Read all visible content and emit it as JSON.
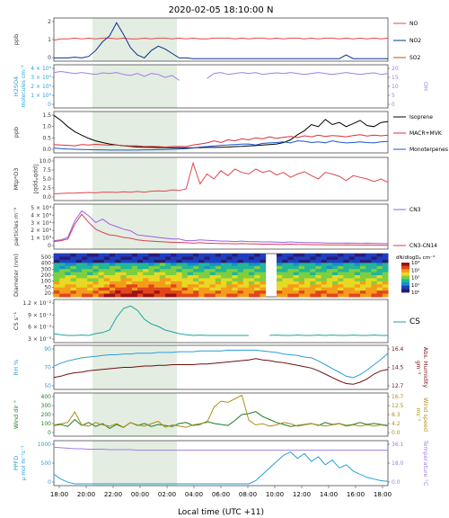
{
  "title": "2020-02-05 18:10:00  N",
  "xlabel": "Local time (UTC +11)",
  "x_ticks": [
    "18:00",
    "20:00",
    "22:00",
    "00:00",
    "02:00",
    "04:00",
    "06:00",
    "08:00",
    "10:00",
    "12:00",
    "14:00",
    "16:00",
    "18:00"
  ],
  "colors": {
    "NO": "#e8474a",
    "NO2": "#0a2f8c",
    "SO2": "#b5561f",
    "H2SO4": "#2a9fd6",
    "OH": "#a07ee3",
    "Isoprene": "#000000",
    "MACR_MVK": "#d9303a",
    "Monoterpenes": "#1a56c9",
    "O3": "#e0484f",
    "CN3": "#9b5fe0",
    "CN3_CN14": "#d93f57",
    "CS": "#1aa5a0",
    "RH": "#2a9fd6",
    "AbsHum": "#6e0f12",
    "WindDir": "#1d7a2c",
    "WindSpeed": "#b08f12",
    "PPFD": "#2a9fd6",
    "Temp": "#a07ee3",
    "shade": "#e3ede2"
  },
  "chart_data": [
    {
      "type": "line",
      "panel": "no_no2_so2",
      "ylabel": "ppb",
      "yticks": [
        "0",
        "1",
        "2"
      ],
      "ylim": [
        0,
        2.7
      ],
      "series": [
        {
          "name": "NO",
          "values": [
            1.3,
            1.4,
            1.4,
            1.45,
            1.4,
            1.45,
            1.4,
            1.45,
            1.45,
            1.4,
            1.45,
            1.4,
            1.4,
            1.45,
            1.4,
            1.45,
            1.45,
            1.4,
            1.45,
            1.4,
            1.45,
            1.4,
            1.4,
            1.45,
            1.45,
            1.45,
            1.4,
            1.45,
            1.4,
            1.45,
            1.45,
            1.4,
            1.45,
            1.4,
            1.45,
            1.45,
            1.4,
            1.45,
            1.4,
            1.45,
            1.45,
            1.4,
            1.45,
            1.4,
            1.45,
            1.4,
            1.45,
            1.4,
            1.45
          ]
        },
        {
          "name": "NO2",
          "values": [
            0.1,
            0.1,
            0.1,
            0.15,
            0.1,
            0.2,
            0.6,
            1.2,
            1.6,
            2.5,
            1.7,
            0.8,
            0.3,
            0.1,
            0.6,
            0.9,
            0.7,
            0.4,
            0.1,
            0.1,
            0.05,
            0.05,
            0.05,
            0.05,
            0.05,
            0.05,
            0.05,
            0.05,
            0.05,
            0.05,
            0.05,
            0.05,
            0.05,
            0.05,
            0.05,
            0.05,
            0.05,
            0.05,
            0.05,
            0.05,
            0.05,
            0.05,
            0.3,
            0.05,
            0.05,
            0.05,
            0.05,
            0.05,
            0.05
          ]
        },
        {
          "name": "SO2",
          "values": []
        }
      ]
    },
    {
      "type": "line",
      "panel": "h2so4_oh",
      "ylabel": "H2SO4",
      "y2label": "OH",
      "units": "molecules cm⁻³",
      "yticks": [
        "0",
        "1 × 10⁶",
        "2 × 10⁶",
        "3 × 10⁶",
        "4 × 10⁶"
      ],
      "y2ticks": [
        "0",
        "5",
        "10",
        "15",
        "20"
      ],
      "ylim": [
        0,
        4000000
      ],
      "y2lim": [
        0,
        20
      ],
      "series": [
        {
          "name": "OH",
          "axis": "right",
          "values": [
            17,
            17.5,
            17,
            16.5,
            17,
            16.5,
            16,
            16.8,
            16.5,
            17,
            16,
            15.5,
            16.5,
            15,
            16.5,
            16,
            14.5,
            15.5,
            13,
            null,
            null,
            null,
            14,
            16.5,
            17,
            16,
            16.5,
            17,
            16.5,
            17,
            16,
            16.5,
            16.8,
            16.5,
            17,
            16.5,
            16,
            16.5,
            17,
            16.5,
            16,
            16.5,
            17,
            16.5,
            16,
            16.5,
            16.8,
            16,
            16.5
          ]
        }
      ]
    },
    {
      "type": "line",
      "panel": "vocs",
      "ylabel": "ppb",
      "yticks": [
        "0.0",
        "0.5",
        "1.0",
        "1.5"
      ],
      "ylim": [
        0,
        1.85
      ],
      "series": [
        {
          "name": "Isoprene",
          "values": [
            1.75,
            1.5,
            1.2,
            0.95,
            0.78,
            0.62,
            0.5,
            0.42,
            0.35,
            0.3,
            0.26,
            0.23,
            0.2,
            0.19,
            0.18,
            0.17,
            0.17,
            0.16,
            0.16,
            0.16,
            0.16,
            0.17,
            0.18,
            0.18,
            0.19,
            0.2,
            0.22,
            0.23,
            0.25,
            0.27,
            0.3,
            0.32,
            0.35,
            0.42,
            0.55,
            0.8,
            1.0,
            1.3,
            1.2,
            1.55,
            1.3,
            1.4,
            1.2,
            1.35,
            1.5,
            1.25,
            1.2,
            1.4,
            1.45
          ]
        },
        {
          "name": "MACR+MVK",
          "values": [
            0.32,
            0.3,
            0.28,
            0.26,
            0.32,
            0.3,
            0.33,
            0.31,
            0.29,
            0.3,
            0.27,
            0.25,
            0.26,
            0.22,
            0.23,
            0.22,
            0.2,
            0.22,
            0.23,
            0.22,
            0.3,
            0.35,
            0.4,
            0.5,
            0.42,
            0.55,
            0.5,
            0.6,
            0.55,
            0.65,
            0.6,
            0.7,
            0.62,
            0.68,
            0.72,
            0.66,
            0.75,
            0.7,
            0.78,
            0.72,
            0.76,
            0.74,
            0.7,
            0.76,
            0.8,
            0.74,
            0.78,
            0.75,
            0.78
          ]
        },
        {
          "name": "Monoterpenes",
          "values": [
            0.15,
            0.12,
            0.1,
            0.09,
            0.08,
            0.07,
            0.06,
            0.06,
            0.05,
            0.05,
            0.05,
            0.05,
            0.05,
            0.06,
            0.06,
            0.07,
            0.08,
            0.09,
            0.1,
            0.12,
            0.15,
            0.2,
            0.22,
            0.25,
            0.28,
            0.3,
            0.32,
            0.34,
            0.35,
            0.3,
            0.38,
            0.4,
            0.42,
            0.45,
            0.4,
            0.5,
            0.48,
            0.42,
            0.45,
            0.4,
            0.5,
            0.44,
            0.4,
            0.42,
            0.45,
            0.42,
            0.4,
            0.45,
            0.47
          ]
        }
      ]
    },
    {
      "type": "line",
      "panel": "o3",
      "ylabel": "Mtp*O3",
      "y2label": "[ppb*ppb]",
      "yticks": [
        "0.0",
        "2.5",
        "5.0",
        "7.5",
        "10.0"
      ],
      "ylim": [
        0,
        12
      ],
      "series": [
        {
          "name": "Mtp*O3",
          "values": [
            1.5,
            1.6,
            1.7,
            1.7,
            1.8,
            1.9,
            1.8,
            2.0,
            2.0,
            1.9,
            2.1,
            2.0,
            2.2,
            2.0,
            2.3,
            2.4,
            2.3,
            2.7,
            2.5,
            3.0,
            10.8,
            4.5,
            7.5,
            6.0,
            8.5,
            7.0,
            9.0,
            8.0,
            7.5,
            9.0,
            8.0,
            8.5,
            7.2,
            8.0,
            6.5,
            7.5,
            8.2,
            7.0,
            6.0,
            8.0,
            7.5,
            6.8,
            5.5,
            7.0,
            6.5,
            6.0,
            5.2,
            6.0,
            5.0
          ]
        }
      ]
    },
    {
      "type": "line",
      "panel": "cn",
      "ylabel": "particles m⁻³",
      "yticks": [
        "0",
        "1 × 10⁴",
        "2 × 10⁴",
        "3 × 10⁴",
        "4 × 10⁴",
        "5 × 10⁴"
      ],
      "ylim": [
        0,
        50000
      ],
      "series": [
        {
          "name": "CN3",
          "values": [
            8000,
            9000,
            12000,
            32000,
            44000,
            38000,
            30000,
            34000,
            28000,
            25000,
            22000,
            20000,
            15000,
            14000,
            13000,
            12000,
            11000,
            10000,
            10000,
            8000,
            8000,
            9000,
            8500,
            8000,
            7500,
            7500,
            7000,
            7500,
            7000,
            6800,
            6500,
            6500,
            6200,
            6000,
            6500,
            6000,
            5800,
            5500,
            5500,
            5200,
            5000,
            5000,
            5200,
            5000,
            4800,
            5000,
            4800,
            4500,
            4500
          ]
        },
        {
          "name": "CN3-CN14",
          "values": [
            7000,
            8000,
            10000,
            28000,
            40000,
            30000,
            22000,
            18000,
            15000,
            14000,
            12000,
            11000,
            9000,
            8000,
            7500,
            7000,
            6500,
            6000,
            6000,
            5500,
            5000,
            5500,
            5000,
            4800,
            4500,
            4500,
            4200,
            4500,
            4200,
            4000,
            3800,
            3800,
            3600,
            3500,
            3800,
            3500,
            3400,
            3200,
            3200,
            3000,
            2800,
            2800,
            3000,
            2800,
            2600,
            2800,
            2600,
            2500,
            2500
          ]
        }
      ]
    },
    {
      "type": "heatmap",
      "panel": "size_distribution",
      "ylabel": "Diameter (nm)",
      "yticks": [
        "20",
        "50",
        "100",
        "200",
        "300",
        "400",
        "500"
      ],
      "legend_title": "dN/dlogDₚ cm⁻³",
      "colorbar_ticks": [
        "10⁴",
        "10³",
        "10²",
        "10¹",
        "10⁰"
      ]
    },
    {
      "type": "line",
      "panel": "cs",
      "ylabel": "CS s⁻¹",
      "yticks": [
        "3 × 10⁻³",
        "6 × 10⁻³",
        "9 × 10⁻³",
        "1.2 × 10⁻²"
      ],
      "ylim": [
        0.0015,
        0.0125
      ],
      "series": [
        {
          "name": "CS",
          "values": [
            0.0035,
            0.0032,
            0.003,
            0.003,
            0.0031,
            0.003,
            0.0035,
            0.0038,
            0.0045,
            0.008,
            0.0105,
            0.0112,
            0.01,
            0.0075,
            0.0062,
            0.0055,
            0.0045,
            0.004,
            0.0035,
            0.0032,
            0.003,
            0.0031,
            0.003,
            0.003,
            0.003,
            0.003,
            0.003,
            0.003,
            0.003,
            null,
            null,
            0.003,
            0.0031,
            0.003,
            0.003,
            0.0031,
            0.003,
            0.003,
            0.0031,
            0.003,
            0.0031,
            0.003,
            0.003,
            0.0031,
            0.003,
            0.003,
            0.0031,
            0.003,
            0.003
          ]
        }
      ]
    },
    {
      "type": "line",
      "panel": "humidity",
      "ylabel": "RH %",
      "y2label": "Abs. Humidity",
      "y2units": "gm⁻³",
      "yticks": [
        "50",
        "70",
        "90"
      ],
      "y2ticks": [
        "12.7",
        "14.5",
        "16.4"
      ],
      "ylim": [
        45,
        98
      ],
      "y2lim": [
        11.5,
        17.5
      ],
      "series": [
        {
          "name": "RH",
          "axis": "left",
          "values": [
            73,
            77,
            80,
            82,
            84,
            85,
            86,
            87,
            88,
            88,
            89,
            89,
            90,
            90,
            90,
            91,
            91,
            91,
            92,
            92,
            92,
            93,
            93,
            93,
            93,
            94,
            94,
            94,
            94,
            94,
            93,
            92,
            91,
            89,
            88,
            87,
            85,
            84,
            80,
            75,
            70,
            65,
            60,
            58,
            62,
            68,
            75,
            82,
            90
          ]
        },
        {
          "name": "Abs. Humidity",
          "axis": "right",
          "values": [
            13.0,
            13.2,
            13.5,
            13.7,
            13.8,
            14.0,
            14.1,
            14.2,
            14.3,
            14.4,
            14.5,
            14.5,
            14.6,
            14.7,
            14.7,
            14.8,
            14.8,
            14.9,
            14.9,
            14.9,
            14.9,
            15.0,
            15.0,
            15.1,
            15.2,
            15.3,
            15.4,
            15.5,
            15.6,
            15.8,
            15.6,
            15.5,
            15.3,
            15.2,
            15.0,
            14.8,
            14.6,
            14.4,
            14.0,
            13.5,
            13.0,
            12.5,
            12.1,
            12.0,
            12.3,
            12.8,
            13.5,
            14.0,
            14.2
          ]
        }
      ]
    },
    {
      "type": "line",
      "panel": "wind",
      "ylabel": "Wind dir °",
      "y2label": "Wind speed",
      "y2units": "ms⁻¹",
      "yticks": [
        "0",
        "100",
        "200",
        "300",
        "400"
      ],
      "y2ticks": [
        "0.0",
        "4.2",
        "8.3",
        "12.5",
        "16.7"
      ],
      "ylim": [
        0,
        400
      ],
      "y2lim": [
        0,
        16.7
      ],
      "series": [
        {
          "name": "Wind dir",
          "axis": "left",
          "values": [
            90,
            100,
            80,
            150,
            90,
            120,
            80,
            110,
            60,
            100,
            70,
            120,
            90,
            110,
            80,
            100,
            90,
            80,
            110,
            120,
            90,
            100,
            130,
            110,
            100,
            90,
            140,
            200,
            210,
            230,
            180,
            150,
            120,
            100,
            80,
            90,
            100,
            110,
            90,
            120,
            100,
            110,
            90,
            100,
            120,
            100,
            110,
            100,
            90
          ]
        },
        {
          "name": "Wind speed",
          "axis": "right",
          "values": [
            4.0,
            4.5,
            5.0,
            9.5,
            4.0,
            3.5,
            5.0,
            4.0,
            3.5,
            4.5,
            3.0,
            5.0,
            4.0,
            3.5,
            4.5,
            5.5,
            3.0,
            4.0,
            3.5,
            3.0,
            4.0,
            4.5,
            5.0,
            11.5,
            14.0,
            13.5,
            15.0,
            16.5,
            6.0,
            4.0,
            4.5,
            3.5,
            4.0,
            5.0,
            4.5,
            3.5,
            4.0,
            4.5,
            4.0,
            3.5,
            4.0,
            4.5,
            3.5,
            4.0,
            3.5,
            4.0,
            3.5,
            4.0,
            3.5
          ]
        }
      ]
    },
    {
      "type": "line",
      "panel": "radiation",
      "ylabel": "PPFD",
      "yunits": "µ mol m⁻²s⁻¹",
      "y2label": "Temperature °C",
      "yticks": [
        "0",
        "500",
        "1000"
      ],
      "y2ticks": [
        "0.0",
        "18.0",
        "36.1"
      ],
      "ylim": [
        0,
        1300
      ],
      "y2lim": [
        0,
        43
      ],
      "series": [
        {
          "name": "PPFD",
          "axis": "left",
          "values": [
            300,
            150,
            50,
            0,
            0,
            0,
            0,
            0,
            0,
            0,
            0,
            0,
            0,
            0,
            0,
            0,
            0,
            0,
            0,
            0,
            0,
            0,
            0,
            0,
            0,
            0,
            0,
            0,
            0,
            100,
            300,
            500,
            700,
            900,
            1000,
            800,
            950,
            700,
            850,
            600,
            750,
            500,
            600,
            400,
            300,
            200,
            150,
            100,
            80
          ]
        },
        {
          "name": "Temperature",
          "axis": "right",
          "values": [
            38,
            37.5,
            37,
            36.5,
            36.5,
            36,
            36,
            36,
            35.5,
            35.5,
            35.5,
            35.5,
            35,
            35,
            35,
            35,
            35,
            35,
            35,
            35,
            35,
            35,
            35,
            35,
            35,
            35,
            35,
            35,
            35,
            35,
            35,
            35,
            35,
            35,
            35,
            35,
            35,
            35,
            35,
            35,
            35,
            35,
            35,
            35,
            35,
            35,
            35,
            35,
            35
          ]
        }
      ]
    }
  ]
}
